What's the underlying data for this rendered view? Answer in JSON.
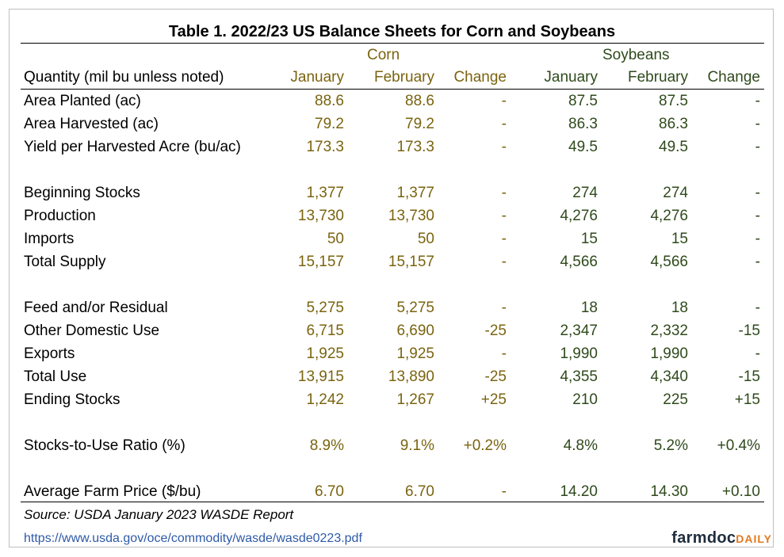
{
  "title": "Table 1. 2022/23 US Balance Sheets for Corn and Soybeans",
  "groups": {
    "corn": "Corn",
    "soybeans": "Soybeans"
  },
  "header": {
    "quantity": "Quantity (mil bu unless noted)",
    "corn_jan": "January",
    "corn_feb": "February",
    "corn_chg": "Change",
    "soy_jan": "January",
    "soy_feb": "February",
    "soy_chg": "Change"
  },
  "rows": [
    {
      "label": "Area Planted (ac)",
      "v": [
        "88.6",
        "88.6",
        "-",
        "87.5",
        "87.5",
        "-"
      ]
    },
    {
      "label": "Area Harvested (ac)",
      "v": [
        "79.2",
        "79.2",
        "-",
        "86.3",
        "86.3",
        "-"
      ]
    },
    {
      "label": "Yield per Harvested Acre (bu/ac)",
      "v": [
        "173.3",
        "173.3",
        "-",
        "49.5",
        "49.5",
        "-"
      ]
    },
    {
      "label": "Beginning Stocks",
      "v": [
        "1,377",
        "1,377",
        "-",
        "274",
        "274",
        "-"
      ]
    },
    {
      "label": "Production",
      "v": [
        "13,730",
        "13,730",
        "-",
        "4,276",
        "4,276",
        "-"
      ]
    },
    {
      "label": "Imports",
      "v": [
        "50",
        "50",
        "-",
        "15",
        "15",
        "-"
      ]
    },
    {
      "label": "Total Supply",
      "v": [
        "15,157",
        "15,157",
        "-",
        "4,566",
        "4,566",
        "-"
      ]
    },
    {
      "label": "Feed and/or Residual",
      "v": [
        "5,275",
        "5,275",
        "-",
        "18",
        "18",
        "-"
      ]
    },
    {
      "label": "Other Domestic Use",
      "v": [
        "6,715",
        "6,690",
        "-25",
        "2,347",
        "2,332",
        "-15"
      ]
    },
    {
      "label": "Exports",
      "v": [
        "1,925",
        "1,925",
        "-",
        "1,990",
        "1,990",
        "-"
      ]
    },
    {
      "label": "Total Use",
      "v": [
        "13,915",
        "13,890",
        "-25",
        "4,355",
        "4,340",
        "-15"
      ]
    },
    {
      "label": "Ending Stocks",
      "v": [
        "1,242",
        "1,267",
        "+25",
        "210",
        "225",
        "+15"
      ]
    },
    {
      "label": "Stocks-to-Use Ratio (%)",
      "v": [
        "8.9%",
        "9.1%",
        "+0.2%",
        "4.8%",
        "5.2%",
        "+0.4%"
      ]
    },
    {
      "label": "Average Farm Price ($/bu)",
      "v": [
        "6.70",
        "6.70",
        "-",
        "14.20",
        "14.30",
        "+0.10"
      ]
    }
  ],
  "source": "Source: USDA January 2023 WASDE Report",
  "link": "https://www.usda.gov/oce/commodity/wasde/wasde0223.pdf",
  "logo": {
    "part1": "farmdoc",
    "part2": "DAILY"
  },
  "colors": {
    "corn": "#7a6410",
    "soybeans": "#2f4a1c",
    "link": "#2e5aa8",
    "logo_accent": "#e07a1f"
  }
}
